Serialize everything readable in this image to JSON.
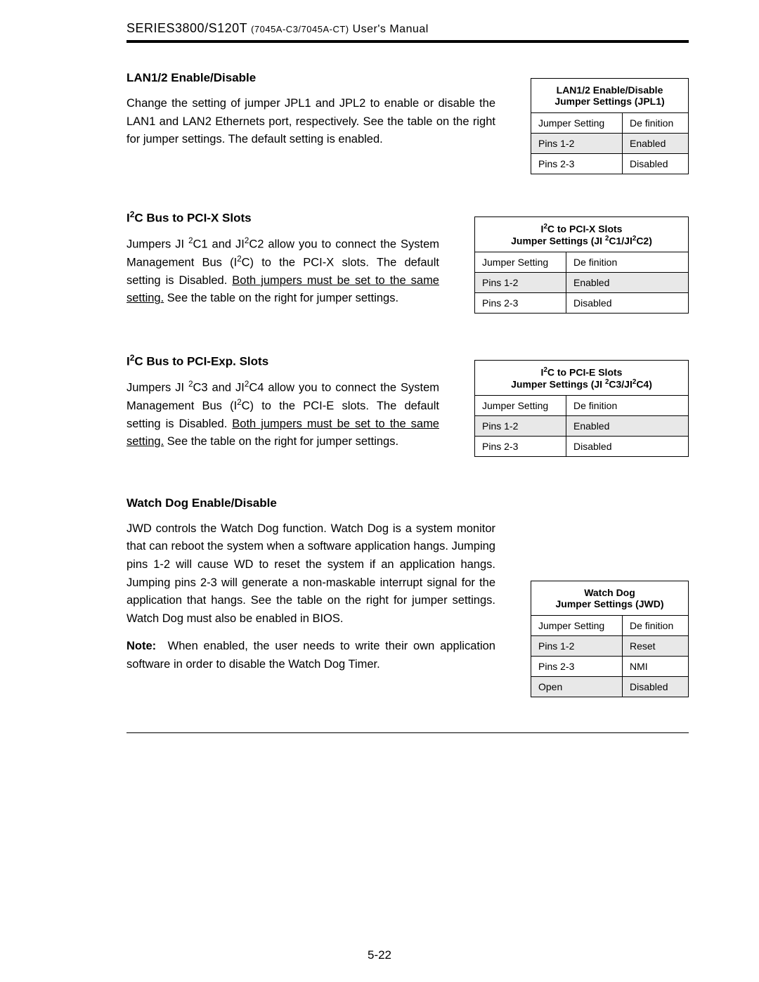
{
  "header": {
    "series": "SERIES3800/S120T",
    "model": "(7045A-C3/7045A-CT)",
    "suffix": " User's Manual"
  },
  "page_number": "5-22",
  "sections": [
    {
      "title_html": "LAN1/2 Enable/Disable",
      "paragraphs": [
        "Change the setting of jumper JPL1 and JPL2 to enable or disable the LAN1 and LAN2 Ethernets port, respectively. See the table on the right for jumper settings. The default setting is enabled."
      ],
      "table": {
        "width": "narrow",
        "title_html": "LAN1/2 Enable/Disable<br>Jumper Settings (JPL1)",
        "cols": [
          "Jumper Setting",
          "De finition"
        ],
        "rows": [
          {
            "cells": [
              "Pins 1-2",
              "Enabled"
            ],
            "shaded": true
          },
          {
            "cells": [
              "Pins 2-3",
              "Disabled"
            ],
            "shaded": false
          }
        ]
      }
    },
    {
      "title_html": "I<sup>2</sup>C Bus to PCI-X Slots",
      "paragraphs_html": [
        "Jumpers JI <sup>2</sup>C1 and JI<sup>2</sup>C2 allow you to connect the System Management Bus (I<sup>2</sup>C) to the PCI-X slots. The default setting is Disabled. <span class=\"underline\">Both jumpers must be set to the same setting.</span> See the table on the right for jumper settings."
      ],
      "table": {
        "width": "wide",
        "title_html": "I<sup>2</sup>C to PCI-X Slots<br>Jumper Settings (JI <sup>2</sup>C1/JI<sup>2</sup>C2)",
        "cols": [
          "Jumper Setting",
          "De finition"
        ],
        "rows": [
          {
            "cells": [
              "Pins 1-2",
              "Enabled"
            ],
            "shaded": true
          },
          {
            "cells": [
              "Pins 2-3",
              "Disabled"
            ],
            "shaded": false
          }
        ]
      }
    },
    {
      "title_html": "I<sup>2</sup>C Bus to PCI-Exp. Slots",
      "paragraphs_html": [
        "Jumpers JI <sup>2</sup>C3 and JI<sup>2</sup>C4 allow you to connect the System Management Bus (I<sup>2</sup>C) to the PCI-E slots. The default setting is Disabled. <span class=\"underline\">Both jumpers must be set to the same setting.</span> See the table on the right for jumper settings."
      ],
      "table": {
        "width": "wide",
        "title_html": "I<sup>2</sup>C to PCI-E Slots<br>Jumper Settings (JI <sup>2</sup>C3/JI<sup>2</sup>C4)",
        "cols": [
          "Jumper Setting",
          "De finition"
        ],
        "rows": [
          {
            "cells": [
              "Pins 1-2",
              "Enabled"
            ],
            "shaded": true
          },
          {
            "cells": [
              "Pins 2-3",
              "Disabled"
            ],
            "shaded": false
          }
        ]
      }
    },
    {
      "title_html": "Watch Dog Enable/Disable",
      "paragraphs_html": [
        "JWD controls the Watch Dog function. Watch Dog is a system monitor that can reboot the system when a software application hangs. Jumping pins 1-2 will cause WD to reset the system if an application hangs. Jumping pins 2-3 will generate a non-maskable interrupt signal for the application that hangs. See the table on the right for jumper settings. Watch Dog must also be enabled in BIOS.",
        "<span class=\"note-label\">Note:</span> When enabled, the user needs to write their own application software in order to disable the Watch Dog Timer."
      ],
      "table_offset": 120,
      "table": {
        "width": "narrow",
        "title_html": "Watch Dog<br>Jumper Settings (JWD)",
        "cols": [
          "Jumper Setting",
          "De finition"
        ],
        "rows": [
          {
            "cells": [
              "Pins 1-2",
              "Reset"
            ],
            "shaded": true
          },
          {
            "cells": [
              "Pins 2-3",
              "NMI"
            ],
            "shaded": false
          },
          {
            "cells": [
              "Open",
              "Disabled"
            ],
            "shaded": true
          }
        ]
      }
    }
  ]
}
